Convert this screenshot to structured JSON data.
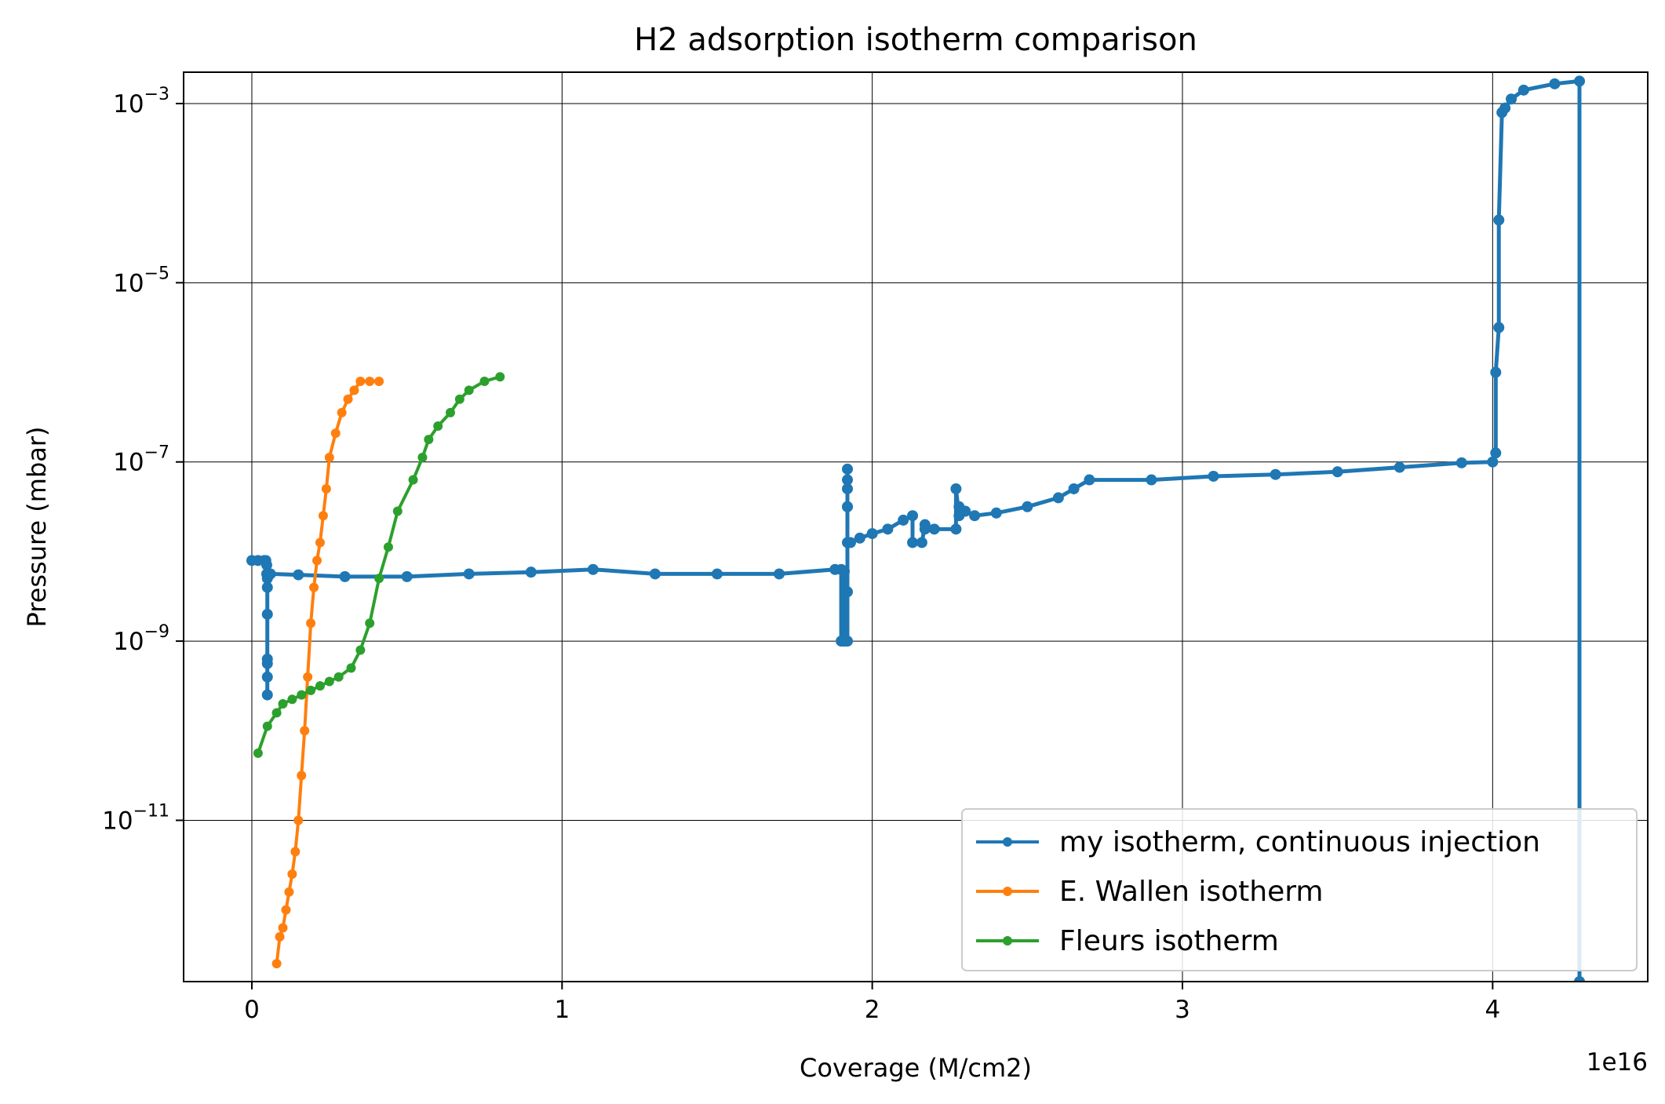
{
  "chart_data": {
    "type": "line",
    "title": "H2 adsorption isotherm comparison",
    "xlabel": "Coverage (M/cm2)",
    "ylabel": "Pressure (mbar)",
    "x_offset_label": "1e16",
    "xlim": [
      -0.22,
      4.5
    ],
    "ylim_exponent": [
      -12.8,
      -2.65
    ],
    "yscale": "log",
    "grid": true,
    "legend_position": "lower-right",
    "x_ticks": [
      {
        "value": 0,
        "label": "0"
      },
      {
        "value": 1,
        "label": "1"
      },
      {
        "value": 2,
        "label": "2"
      },
      {
        "value": 3,
        "label": "3"
      },
      {
        "value": 4,
        "label": "4"
      }
    ],
    "y_ticks": [
      {
        "exponent": -3,
        "base": "10",
        "sup": "−3"
      },
      {
        "exponent": -5,
        "base": "10",
        "sup": "−5"
      },
      {
        "exponent": -7,
        "base": "10",
        "sup": "−7"
      },
      {
        "exponent": -9,
        "base": "10",
        "sup": "−9"
      },
      {
        "exponent": -11,
        "base": "10",
        "sup": "−11"
      }
    ],
    "series": [
      {
        "name": "my isotherm, continuous injection",
        "color": "#1f77b4",
        "x": [
          0.0,
          0.02,
          0.04,
          0.045,
          0.048,
          0.048,
          0.05,
          0.05,
          0.05,
          0.05,
          0.05,
          0.05,
          0.05,
          0.05,
          0.06,
          0.15,
          0.3,
          0.5,
          0.7,
          0.9,
          1.1,
          1.3,
          1.5,
          1.7,
          1.88,
          1.9,
          1.9,
          1.91,
          1.91,
          1.91,
          1.92,
          1.92,
          1.92,
          1.92,
          1.92,
          1.92,
          1.92,
          1.92,
          1.93,
          1.96,
          2.0,
          2.05,
          2.1,
          2.13,
          2.13,
          2.16,
          2.17,
          2.17,
          2.2,
          2.27,
          2.27,
          2.28,
          2.28,
          2.29,
          2.3,
          2.33,
          2.4,
          2.5,
          2.6,
          2.65,
          2.7,
          2.9,
          3.1,
          3.3,
          3.5,
          3.7,
          3.9,
          4.0,
          4.01,
          4.01,
          4.02,
          4.02,
          4.03,
          4.04,
          4.06,
          4.1,
          4.2,
          4.28,
          4.28
        ],
        "exponents": [
          -8.1,
          -8.1,
          -8.1,
          -8.1,
          -8.15,
          -8.25,
          -8.3,
          -8.4,
          -8.7,
          -9.2,
          -9.4,
          -9.6,
          -9.25,
          -8.25,
          -8.25,
          -8.26,
          -8.28,
          -8.28,
          -8.25,
          -8.23,
          -8.2,
          -8.25,
          -8.25,
          -8.25,
          -8.2,
          -8.2,
          -9.0,
          -9.0,
          -8.22,
          -9.0,
          -9.0,
          -8.45,
          -7.5,
          -7.3,
          -7.08,
          -7.2,
          -7.5,
          -7.9,
          -7.9,
          -7.85,
          -7.8,
          -7.75,
          -7.65,
          -7.6,
          -7.9,
          -7.9,
          -7.7,
          -7.75,
          -7.75,
          -7.75,
          -7.3,
          -7.6,
          -7.5,
          -7.55,
          -7.55,
          -7.6,
          -7.57,
          -7.5,
          -7.4,
          -7.3,
          -7.2,
          -7.2,
          -7.16,
          -7.14,
          -7.11,
          -7.06,
          -7.01,
          -7.0,
          -6.9,
          -6.0,
          -5.5,
          -4.3,
          -3.1,
          -3.05,
          -2.95,
          -2.85,
          -2.78,
          -2.75,
          -12.8
        ]
      },
      {
        "name": "E. Wallen isotherm",
        "color": "#ff7f0e",
        "x": [
          0.08,
          0.09,
          0.1,
          0.11,
          0.12,
          0.13,
          0.14,
          0.15,
          0.16,
          0.17,
          0.18,
          0.19,
          0.2,
          0.21,
          0.22,
          0.23,
          0.24,
          0.25,
          0.27,
          0.29,
          0.31,
          0.33,
          0.35,
          0.38,
          0.41
        ],
        "exponents": [
          -12.6,
          -12.3,
          -12.2,
          -12.0,
          -11.8,
          -11.6,
          -11.35,
          -11.0,
          -10.5,
          -10.0,
          -9.4,
          -8.8,
          -8.4,
          -8.1,
          -7.9,
          -7.6,
          -7.3,
          -6.95,
          -6.68,
          -6.45,
          -6.3,
          -6.2,
          -6.1,
          -6.1,
          -6.1
        ]
      },
      {
        "name": "Fleurs isotherm",
        "color": "#2ca02c",
        "x": [
          0.02,
          0.05,
          0.08,
          0.1,
          0.13,
          0.16,
          0.19,
          0.22,
          0.25,
          0.28,
          0.32,
          0.35,
          0.38,
          0.41,
          0.44,
          0.47,
          0.52,
          0.55,
          0.57,
          0.6,
          0.64,
          0.67,
          0.7,
          0.75,
          0.8
        ],
        "exponents": [
          -10.25,
          -9.95,
          -9.8,
          -9.7,
          -9.65,
          -9.6,
          -9.55,
          -9.5,
          -9.45,
          -9.4,
          -9.3,
          -9.1,
          -8.8,
          -8.3,
          -7.95,
          -7.55,
          -7.2,
          -6.95,
          -6.75,
          -6.6,
          -6.45,
          -6.3,
          -6.2,
          -6.1,
          -6.05
        ]
      }
    ]
  }
}
